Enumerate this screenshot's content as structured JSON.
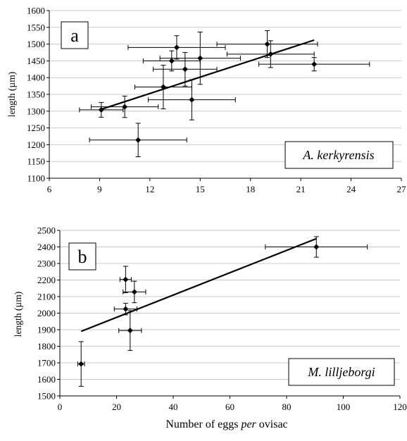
{
  "figure": {
    "xlabel_prefix": "Number of eggs ",
    "xlabel_italic": "per",
    "xlabel_suffix": " ovisac"
  },
  "chart_data": [
    {
      "type": "scatter",
      "panel_label": "a",
      "species_label": "A. kerkyrensis",
      "ylabel": "length (µm)",
      "xlabel": "",
      "xlim": [
        6,
        27
      ],
      "ylim": [
        1100,
        1600
      ],
      "xticks": [
        6,
        9,
        12,
        15,
        18,
        21,
        24,
        27
      ],
      "yticks": [
        1100,
        1150,
        1200,
        1250,
        1300,
        1350,
        1400,
        1450,
        1500,
        1550,
        1600
      ],
      "grid": "horizontal",
      "points": [
        {
          "x": 9.1,
          "y": 1304,
          "xerr": 1.3,
          "yerr": 22
        },
        {
          "x": 10.5,
          "y": 1313,
          "xerr": 2.0,
          "yerr": 32
        },
        {
          "x": 11.3,
          "y": 1214,
          "xerr": 2.9,
          "yerr": 50
        },
        {
          "x": 12.8,
          "y": 1372,
          "xerr": 1.7,
          "yerr": 65
        },
        {
          "x": 13.6,
          "y": 1490,
          "xerr": 2.9,
          "yerr": 35
        },
        {
          "x": 13.3,
          "y": 1450,
          "xerr": 1.7,
          "yerr": 30
        },
        {
          "x": 14.1,
          "y": 1425,
          "xerr": 1.9,
          "yerr": 50
        },
        {
          "x": 14.5,
          "y": 1334,
          "xerr": 2.6,
          "yerr": 60
        },
        {
          "x": 15.0,
          "y": 1458,
          "xerr": 2.4,
          "yerr": 78
        },
        {
          "x": 19.0,
          "y": 1500,
          "xerr": 3.0,
          "yerr": 40
        },
        {
          "x": 19.2,
          "y": 1470,
          "xerr": 2.6,
          "yerr": 40
        },
        {
          "x": 21.8,
          "y": 1440,
          "xerr": 3.3,
          "yerr": 20
        }
      ],
      "trendline": {
        "x": [
          9.0,
          21.8
        ],
        "y": [
          1304,
          1512
        ]
      }
    },
    {
      "type": "scatter",
      "panel_label": "b",
      "species_label": "M. lilljeborgi",
      "ylabel": "length (µm)",
      "xlabel": "Number of eggs per ovisac",
      "xlim": [
        0,
        120
      ],
      "ylim": [
        1500,
        2500
      ],
      "xticks": [
        0,
        20,
        40,
        60,
        80,
        100,
        120
      ],
      "yticks": [
        1500,
        1600,
        1700,
        1800,
        1900,
        2000,
        2100,
        2200,
        2300,
        2400,
        2500
      ],
      "grid": "horizontal",
      "points": [
        {
          "x": 7.5,
          "y": 1693,
          "xerr": 1.2,
          "yerr": 135
        },
        {
          "x": 23.2,
          "y": 2203,
          "xerr": 2.0,
          "yerr": 80
        },
        {
          "x": 26.3,
          "y": 2128,
          "xerr": 4.0,
          "yerr": 65
        },
        {
          "x": 23.2,
          "y": 2025,
          "xerr": 4.0,
          "yerr": 35
        },
        {
          "x": 24.8,
          "y": 1895,
          "xerr": 4.0,
          "yerr": 120
        },
        {
          "x": 90.5,
          "y": 2400,
          "xerr": 18.0,
          "yerr": 62
        }
      ],
      "trendline": {
        "x": [
          7.5,
          90.5
        ],
        "y": [
          1890,
          2450
        ]
      }
    }
  ]
}
